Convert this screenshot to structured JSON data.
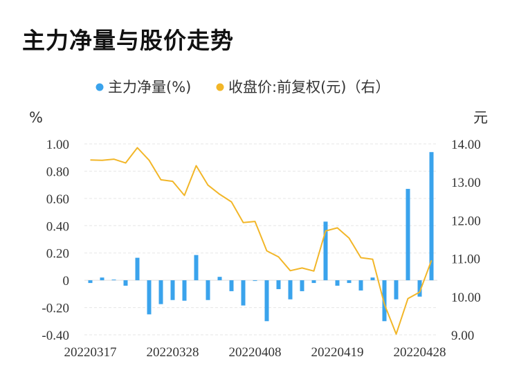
{
  "title": "主力净量与股价走势",
  "colors": {
    "bar": "#3aa3ec",
    "line": "#f2b628",
    "grid": "#e6e6e6",
    "text": "#333333"
  },
  "chart_data": {
    "type": "bar+line",
    "legend": [
      "主力净量(%)",
      "收盘价:前复权(元)（右）"
    ],
    "legend_position": "top",
    "y_left_unit": "%",
    "y_right_unit": "元",
    "y_left_ticks": [
      "1.00",
      "0.80",
      "0.60",
      "0.40",
      "0.20",
      "0",
      "-0.20",
      "-0.40"
    ],
    "y_right_ticks": [
      "14.00",
      "13.00",
      "12.00",
      "11.00",
      "10.00",
      "9.00"
    ],
    "y_left_range": [
      -0.4,
      1.0
    ],
    "y_right_range": [
      9.0,
      14.0
    ],
    "x_tick_labels": [
      "20220317",
      "20220328",
      "20220408",
      "20220419",
      "20220428"
    ],
    "x_tick_index": [
      0,
      7,
      14,
      21,
      28
    ],
    "grid": true,
    "series": [
      {
        "name": "主力净量(%)",
        "type": "bar",
        "axis": "left",
        "values": [
          -0.02,
          0.02,
          0.005,
          -0.04,
          0.165,
          -0.25,
          -0.175,
          -0.145,
          -0.15,
          0.185,
          -0.145,
          0.025,
          -0.08,
          -0.185,
          0.0,
          -0.3,
          -0.065,
          -0.14,
          -0.08,
          -0.02,
          0.43,
          -0.04,
          -0.02,
          -0.075,
          0.02,
          -0.3,
          -0.14,
          0.67,
          -0.12,
          0.94
        ]
      },
      {
        "name": "收盘价:前复权(元)（右）",
        "type": "line",
        "axis": "right",
        "values": [
          13.58,
          13.57,
          13.6,
          13.5,
          13.9,
          13.57,
          13.06,
          13.02,
          12.65,
          13.43,
          12.92,
          12.68,
          12.48,
          11.94,
          11.97,
          11.2,
          11.04,
          10.68,
          10.75,
          10.67,
          11.72,
          11.8,
          11.53,
          11.02,
          10.98,
          9.8,
          9.02,
          9.95,
          10.12,
          10.95
        ]
      }
    ]
  }
}
